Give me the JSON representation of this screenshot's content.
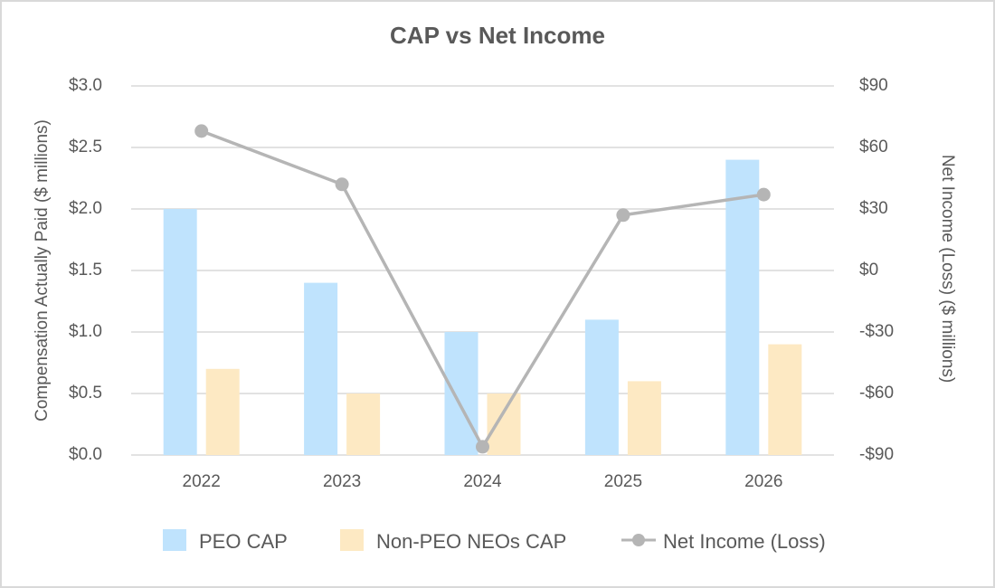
{
  "chart_data": {
    "type": "bar",
    "title": "CAP vs Net Income",
    "categories": [
      "2022",
      "2023",
      "2024",
      "2025",
      "2026"
    ],
    "ylabel": "Compensation Actually Paid ($ millions)",
    "y2label": "Net Income (Loss) ($ millions)",
    "ylim": [
      0,
      3.0
    ],
    "y2lim": [
      -90,
      90
    ],
    "yticks": [
      "$0.0",
      "$0.5",
      "$1.0",
      "$1.5",
      "$2.0",
      "$2.5",
      "$3.0"
    ],
    "y2ticks": [
      "-$90",
      "-$60",
      "-$30",
      "$0",
      "$30",
      "$60",
      "$90"
    ],
    "grid": true,
    "legend_position": "bottom",
    "series": [
      {
        "name": "PEO CAP",
        "type": "bar",
        "axis": "left",
        "color": "#bfe3fd",
        "values": [
          2.0,
          1.4,
          1.0,
          1.1,
          2.4
        ]
      },
      {
        "name": "Non-PEO NEOs CAP",
        "type": "bar",
        "axis": "left",
        "color": "#fde9c3",
        "values": [
          0.7,
          0.5,
          0.5,
          0.6,
          0.9
        ]
      },
      {
        "name": "Net Income (Loss)",
        "type": "line",
        "axis": "right",
        "color": "#b5b5b5",
        "values": [
          68,
          42,
          -86,
          27,
          37
        ]
      }
    ]
  }
}
